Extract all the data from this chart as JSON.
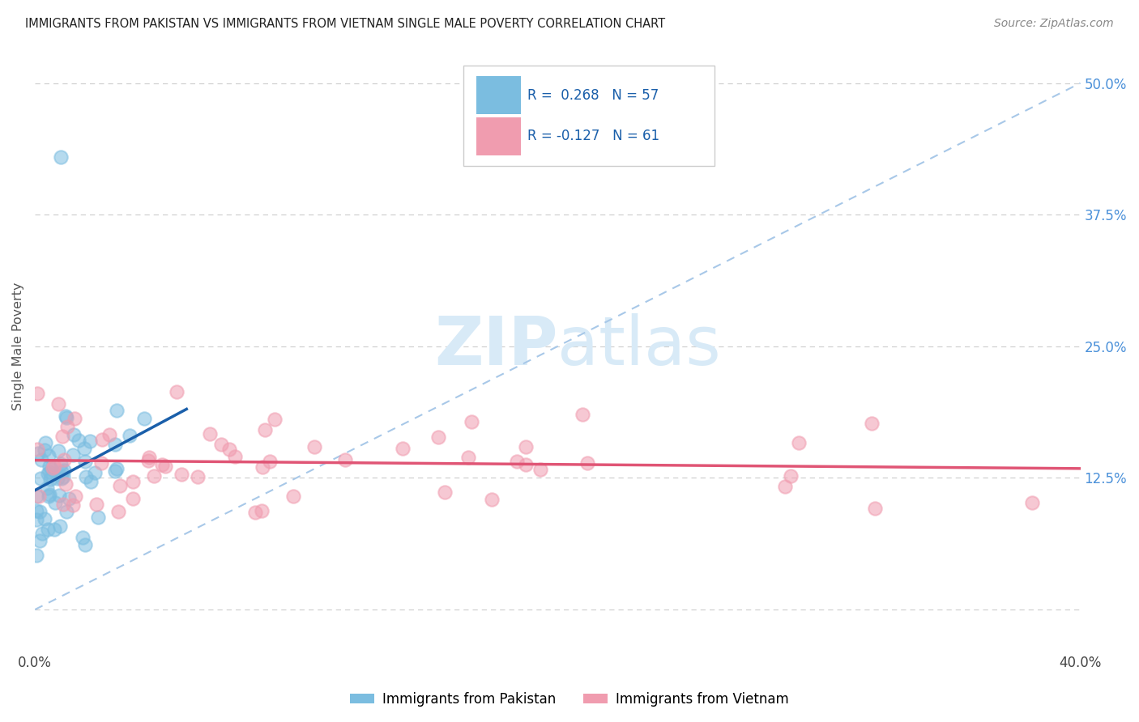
{
  "title": "IMMIGRANTS FROM PAKISTAN VS IMMIGRANTS FROM VIETNAM SINGLE MALE POVERTY CORRELATION CHART",
  "source": "Source: ZipAtlas.com",
  "ylabel": "Single Male Poverty",
  "xlim": [
    0.0,
    0.4
  ],
  "ylim": [
    -0.04,
    0.54
  ],
  "yticks": [
    0.0,
    0.125,
    0.25,
    0.375,
    0.5
  ],
  "color_pakistan": "#7bbde0",
  "color_vietnam": "#f09caf",
  "trendline_pakistan": "#1a5faa",
  "trendline_vietnam": "#e05575",
  "trendline_dashed": "#a8c8e8",
  "bg_color": "#ffffff",
  "grid_color": "#d0d0d0",
  "title_color": "#222222",
  "right_ytick_color": "#4a90d9",
  "source_color": "#888888",
  "watermark_color": "#d8eaf7",
  "legend_text_color": "#1a5faa",
  "legend_r_pak": "R =  0.268",
  "legend_n_pak": "N = 57",
  "legend_r_viet": "R = -0.127",
  "legend_n_viet": "N = 61"
}
